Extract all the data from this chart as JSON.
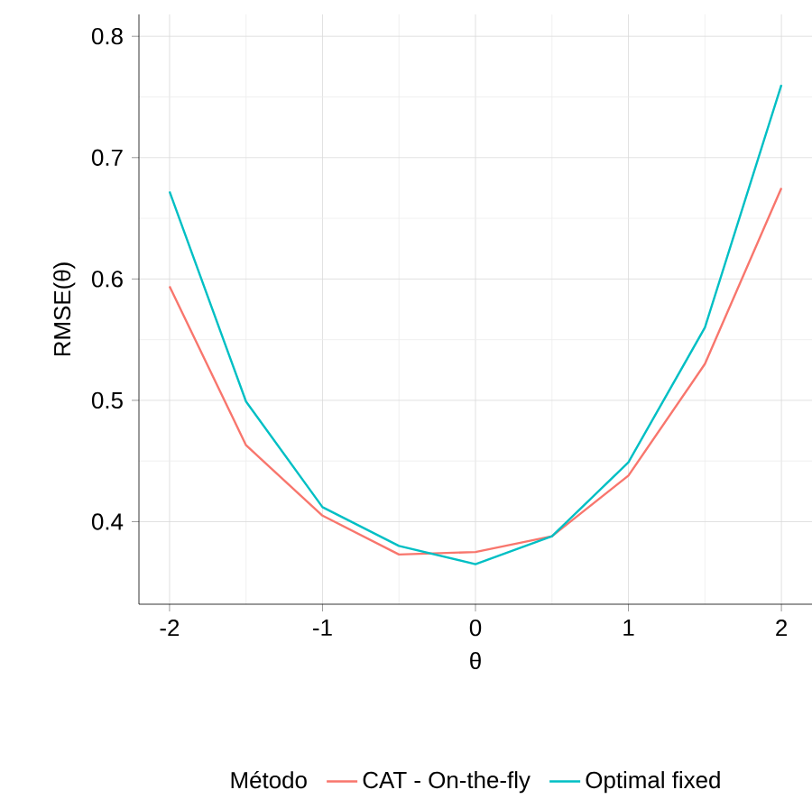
{
  "chart_data": {
    "type": "line",
    "xlabel": "θ",
    "ylabel": "RMSE(θ)",
    "legend_title": "Método",
    "legend": "bottom",
    "grid": true,
    "x": [
      -2,
      -1.5,
      -1,
      -0.5,
      0,
      0.5,
      1,
      1.5,
      2
    ],
    "series": [
      {
        "name": "CAT - On-the-fly",
        "color": "#f8766d",
        "values": [
          0.594,
          0.463,
          0.405,
          0.373,
          0.375,
          0.388,
          0.438,
          0.53,
          0.675
        ]
      },
      {
        "name": "Optimal fixed",
        "color": "#00bfc4",
        "values": [
          0.672,
          0.499,
          0.412,
          0.38,
          0.365,
          0.388,
          0.449,
          0.56,
          0.76
        ]
      }
    ],
    "xlim": [
      -2.2,
      2.2
    ],
    "ylim": [
      0.332,
      0.818
    ],
    "xticks": [
      -2,
      -1,
      0,
      1,
      2
    ],
    "yticks": [
      0.4,
      0.5,
      0.6,
      0.7,
      0.8
    ]
  }
}
